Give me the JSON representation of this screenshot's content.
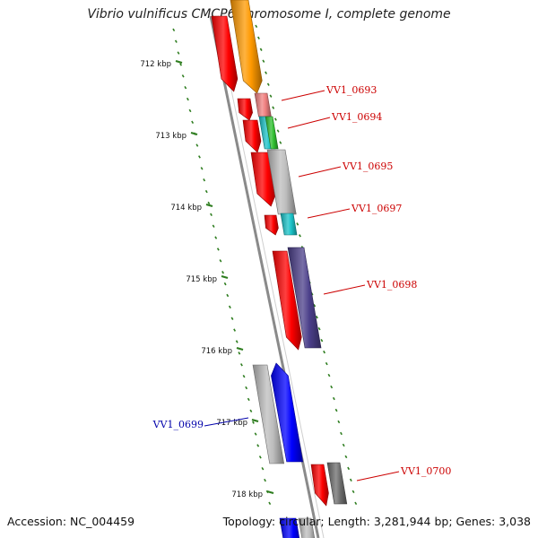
{
  "title": "Vibrio vulnificus CMCP6 chromosome I, complete genome",
  "footer": {
    "accession": "Accession: NC_004459",
    "stats": "Topology: circular; Length: 3,281,944 bp; Genes: 3,038"
  },
  "colors": {
    "forward_label": "#cc0000",
    "reverse_label": "#0000aa",
    "backbone": "#8a8a8a",
    "tick": "#2e7d1f",
    "cds_red": "#ff0000",
    "cds_orange": "#ff9900",
    "cds_salmon": "#f08080",
    "cds_cyan": "#19c3c8",
    "cds_green": "#2fbf2f",
    "cds_grey": "#bdbdbd",
    "cds_slate": "#4b3f8a",
    "cds_blue": "#0000ff",
    "cds_darkgrey": "#6e6e6e"
  },
  "ticks": [
    {
      "label": "712 kbp"
    },
    {
      "label": "713 kbp"
    },
    {
      "label": "714 kbp"
    },
    {
      "label": "715 kbp"
    },
    {
      "label": "716 kbp"
    },
    {
      "label": "717 kbp"
    },
    {
      "label": "718 kbp"
    }
  ],
  "gene_labels": [
    {
      "text": "VV1_0693",
      "strand": "forward"
    },
    {
      "text": "VV1_0694",
      "strand": "forward"
    },
    {
      "text": "VV1_0695",
      "strand": "forward"
    },
    {
      "text": "VV1_0697",
      "strand": "forward"
    },
    {
      "text": "VV1_0698",
      "strand": "forward"
    },
    {
      "text": "VV1_0699",
      "strand": "reverse"
    },
    {
      "text": "VV1_0700",
      "strand": "forward"
    }
  ]
}
